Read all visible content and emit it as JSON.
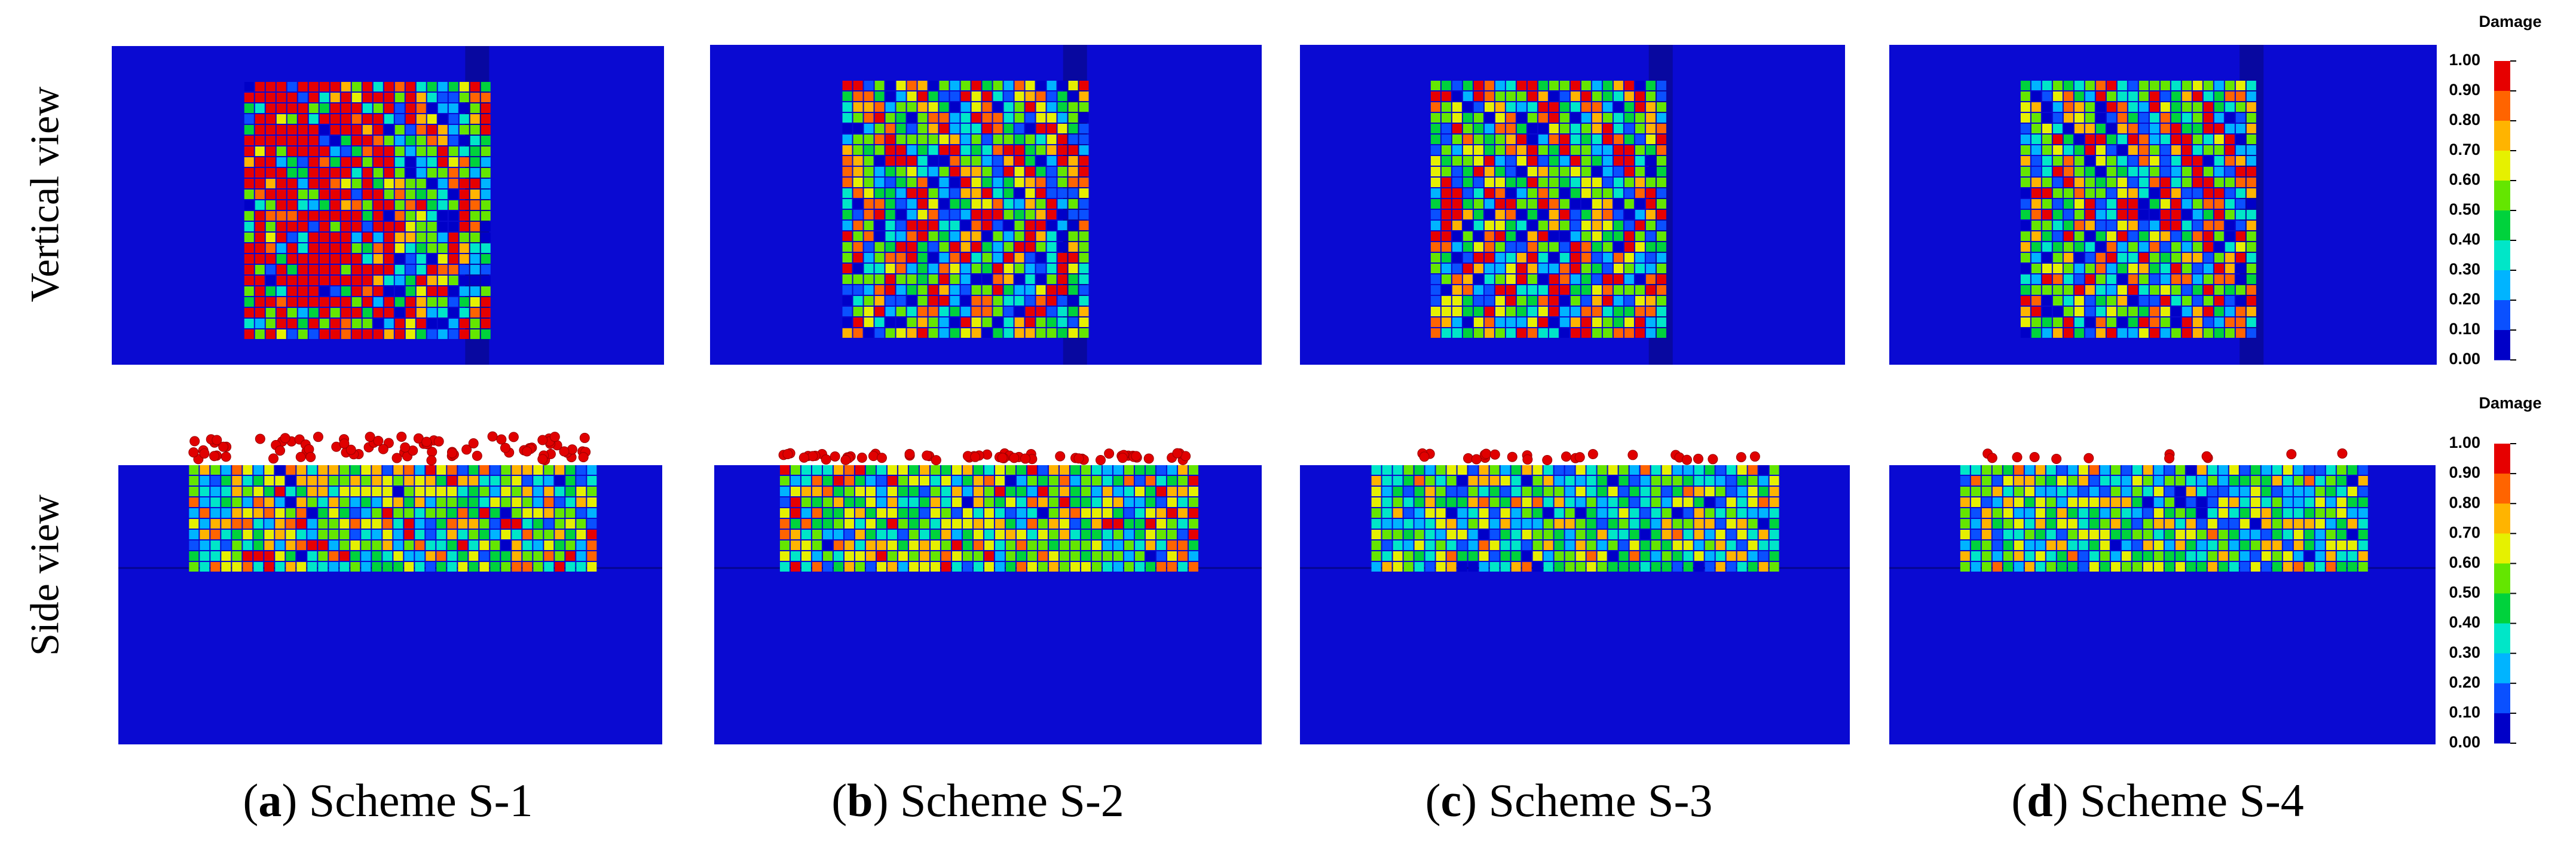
{
  "row_labels": [
    "Vertical view",
    "Side view"
  ],
  "panels": [
    {
      "caption": [
        {
          "text": "("
        },
        {
          "text": "a",
          "bold": true
        },
        {
          "text": ") Scheme S-1"
        }
      ]
    },
    {
      "caption": [
        {
          "text": "("
        },
        {
          "text": "b",
          "bold": true
        },
        {
          "text": ") Scheme S-2"
        }
      ]
    },
    {
      "caption": [
        {
          "text": "("
        },
        {
          "text": "c",
          "bold": true
        },
        {
          "text": ") Scheme S-3"
        }
      ]
    },
    {
      "caption": [
        {
          "text": "("
        },
        {
          "text": "d",
          "bold": true
        },
        {
          "text": ") Scheme S-4"
        }
      ]
    }
  ],
  "colorbars": [
    {
      "title": "Damage",
      "ticks": [
        "1.00",
        "0.90",
        "0.80",
        "0.70",
        "0.60",
        "0.50",
        "0.40",
        "0.30",
        "0.20",
        "0.10",
        "0.00"
      ]
    },
    {
      "title": "Damage",
      "ticks": [
        "1.00",
        "0.90",
        "0.80",
        "0.70",
        "0.60",
        "0.50",
        "0.40",
        "0.30",
        "0.20",
        "0.10",
        "0.00"
      ]
    }
  ]
}
